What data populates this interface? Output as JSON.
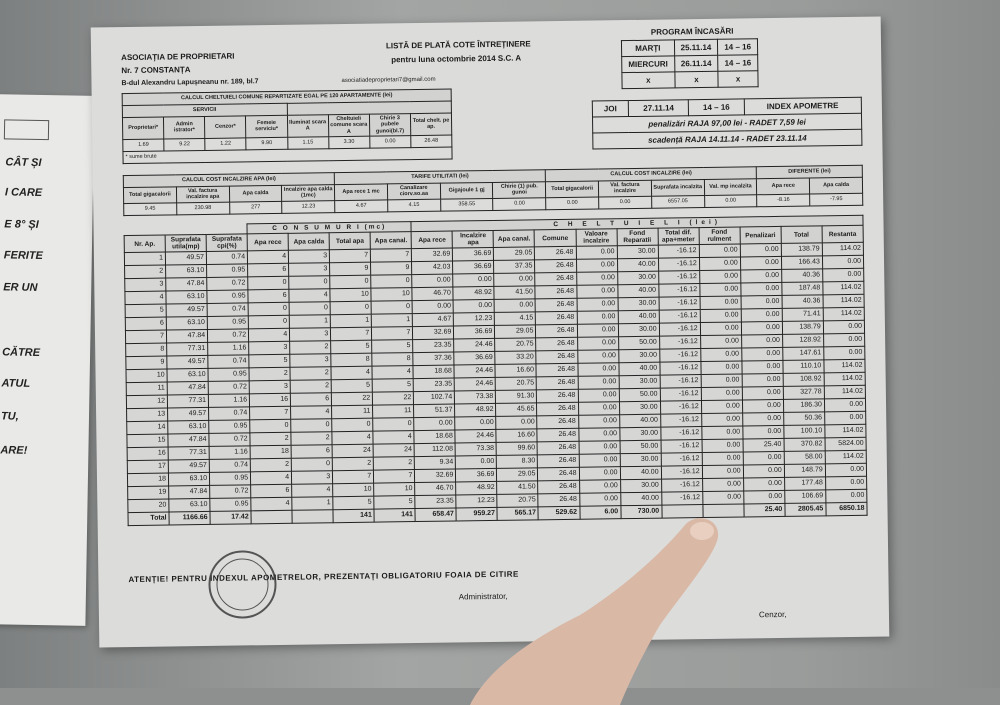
{
  "left_paper": {
    "lines": [
      "CÂT ȘI",
      "I CARE",
      "E 8° ȘI",
      "FERITE",
      "ER UN",
      "CĂTRE",
      "ATUL",
      "TU,",
      "ARE!"
    ]
  },
  "header": {
    "association": "ASOCIAȚIA DE PROPRIETARI",
    "number": "Nr. 7 CONSTANȚA",
    "address": "B-dul Alexandru Lapușneanu nr. 189, bl.7",
    "email": "asociatiadeproprietari7@gmail.com",
    "title": "LISTĂ DE PLATĂ COTE ÎNTREȚINERE",
    "subtitle": "pentru luna   octombrie 2014   S.C. A"
  },
  "program": {
    "title": "PROGRAM ÎNCASĂRI",
    "rows": [
      [
        "MARȚI",
        "25.11.14",
        "14 – 16"
      ],
      [
        "MIERCURI",
        "26.11.14",
        "14 – 16"
      ],
      [
        "x",
        "x",
        "x"
      ]
    ]
  },
  "program2": {
    "row": [
      "JOI",
      "27.11.14",
      "14 – 16"
    ],
    "index_label": "INDEX APOMETRE",
    "penalties": "penalizări RAJA 97,00 lei - RADET 7,59 lei",
    "due": "scadență RAJA 14.11.14 - RADET 23.11.14"
  },
  "common": {
    "title": "CALCUL CHELTUIELI COMUNE REPARTIZATE EGAL PE 120 APARTAMENTE (lei)",
    "group": "SERVICII",
    "headers": [
      "Proprietari*",
      "Admin istrator*",
      "Cenzor*",
      "Femeie serviciu*",
      "Iluminat scara A",
      "Cheltuieli comune scara A",
      "Chirie 3 pubele gunoi(bl.7)",
      "Total chelt. pe ap."
    ],
    "values": [
      "1.69",
      "9.22",
      "1.22",
      "9.90",
      "1.15",
      "3.30",
      "0.00",
      "26.48"
    ],
    "note": "* sume brute"
  },
  "water_heat": {
    "title": "CALCUL COST INCALZIRE APA (lei)",
    "headers": [
      "Total gigacalorii",
      "Val. factura incalzire apa",
      "Apa calda",
      "Incalzire apa calda (1mc)"
    ],
    "values": [
      "9.45",
      "230.98",
      "277",
      "12.23"
    ]
  },
  "tariffs": {
    "title": "TARIFE UTILITATI (lei)",
    "headers": [
      "Apa rece 1 mc",
      "Canalizare ciorv.so.aa",
      "Gigajoule 1 gj",
      "Chirie (1) pub. gunoi"
    ],
    "values": [
      "4.67",
      "4.15",
      "358.55",
      "0.00"
    ]
  },
  "heating": {
    "title": "CALCUL COST INCALZIRE (lei)",
    "headers": [
      "Total gigacalorii",
      "Val. factura incalzire",
      "Suprafata incalzita",
      "Val. mp incalzita"
    ],
    "values": [
      "0.00",
      "0.00",
      "6557.05",
      "0.00"
    ]
  },
  "diff": {
    "title": "DIFERENTE (lei)",
    "headers": [
      "Apa rece",
      "Apa calda"
    ],
    "values": [
      "-8.16",
      "-7.95"
    ]
  },
  "main_table": {
    "consum_title": "C O N S U M U R I (mc)",
    "chelt_title": "C H E L T U I E L I (lei)",
    "headers": [
      "Nr. Ap.",
      "Suprafata utila(mp)",
      "Suprafata cpi(%)",
      "Apa rece",
      "Apa calda",
      "Total apa",
      "Apa canal.",
      "Apa rece",
      "Incalzire apa",
      "Apa canal.",
      "Comune",
      "Valoare incalzire",
      "Fond Reparatii",
      "Total dif. apa+meter",
      "Fond rulment",
      "Penalizari",
      "Total",
      "Restanta"
    ],
    "rows": [
      [
        "1",
        "49.57",
        "0.74",
        "4",
        "3",
        "7",
        "7",
        "32.69",
        "36.69",
        "29.05",
        "26.48",
        "0.00",
        "30.00",
        "-16.12",
        "0.00",
        "0.00",
        "138.79",
        "114.02"
      ],
      [
        "2",
        "63.10",
        "0.95",
        "6",
        "3",
        "9",
        "9",
        "42.03",
        "36.69",
        "37.35",
        "26.48",
        "0.00",
        "40.00",
        "-16.12",
        "0.00",
        "0.00",
        "166.43",
        "0.00"
      ],
      [
        "3",
        "47.84",
        "0.72",
        "0",
        "0",
        "0",
        "0",
        "0.00",
        "0.00",
        "0.00",
        "26.48",
        "0.00",
        "30.00",
        "-16.12",
        "0.00",
        "0.00",
        "40.36",
        "0.00"
      ],
      [
        "4",
        "63.10",
        "0.95",
        "6",
        "4",
        "10",
        "10",
        "46.70",
        "48.92",
        "41.50",
        "26.48",
        "0.00",
        "40.00",
        "-16.12",
        "0.00",
        "0.00",
        "187.48",
        "114.02"
      ],
      [
        "5",
        "49.57",
        "0.74",
        "0",
        "0",
        "0",
        "0",
        "0.00",
        "0.00",
        "0.00",
        "26.48",
        "0.00",
        "30.00",
        "-16.12",
        "0.00",
        "0.00",
        "40.36",
        "114.02"
      ],
      [
        "6",
        "63.10",
        "0.95",
        "0",
        "1",
        "1",
        "1",
        "4.67",
        "12.23",
        "4.15",
        "26.48",
        "0.00",
        "40.00",
        "-16.12",
        "0.00",
        "0.00",
        "71.41",
        "114.02"
      ],
      [
        "7",
        "47.84",
        "0.72",
        "4",
        "3",
        "7",
        "7",
        "32.69",
        "36.69",
        "29.05",
        "26.48",
        "0.00",
        "30.00",
        "-16.12",
        "0.00",
        "0.00",
        "138.79",
        "0.00"
      ],
      [
        "8",
        "77.31",
        "1.16",
        "3",
        "2",
        "5",
        "5",
        "23.35",
        "24.46",
        "20.75",
        "26.48",
        "0.00",
        "50.00",
        "-16.12",
        "0.00",
        "0.00",
        "128.92",
        "0.00"
      ],
      [
        "9",
        "49.57",
        "0.74",
        "5",
        "3",
        "8",
        "8",
        "37.36",
        "36.69",
        "33.20",
        "26.48",
        "0.00",
        "30.00",
        "-16.12",
        "0.00",
        "0.00",
        "147.61",
        "0.00"
      ],
      [
        "10",
        "63.10",
        "0.95",
        "2",
        "2",
        "4",
        "4",
        "18.68",
        "24.46",
        "16.60",
        "26.48",
        "0.00",
        "40.00",
        "-16.12",
        "0.00",
        "0.00",
        "110.10",
        "114.02"
      ],
      [
        "11",
        "47.84",
        "0.72",
        "3",
        "2",
        "5",
        "5",
        "23.35",
        "24.46",
        "20.75",
        "26.48",
        "0.00",
        "30.00",
        "-16.12",
        "0.00",
        "0.00",
        "108.92",
        "114.02"
      ],
      [
        "12",
        "77.31",
        "1.16",
        "16",
        "6",
        "22",
        "22",
        "102.74",
        "73.38",
        "91.30",
        "26.48",
        "0.00",
        "50.00",
        "-16.12",
        "0.00",
        "0.00",
        "327.78",
        "114.02"
      ],
      [
        "13",
        "49.57",
        "0.74",
        "7",
        "4",
        "11",
        "11",
        "51.37",
        "48.92",
        "45.65",
        "26.48",
        "0.00",
        "30.00",
        "-16.12",
        "0.00",
        "0.00",
        "186.30",
        "0.00"
      ],
      [
        "14",
        "63.10",
        "0.95",
        "0",
        "0",
        "0",
        "0",
        "0.00",
        "0.00",
        "0.00",
        "26.48",
        "0.00",
        "40.00",
        "-16.12",
        "0.00",
        "0.00",
        "50.36",
        "0.00"
      ],
      [
        "15",
        "47.84",
        "0.72",
        "2",
        "2",
        "4",
        "4",
        "18.68",
        "24.46",
        "16.60",
        "26.48",
        "0.00",
        "30.00",
        "-16.12",
        "0.00",
        "0.00",
        "100.10",
        "114.02"
      ],
      [
        "16",
        "77.31",
        "1.16",
        "18",
        "6",
        "24",
        "24",
        "112.08",
        "73.38",
        "99.60",
        "26.48",
        "0.00",
        "50.00",
        "-16.12",
        "0.00",
        "25.40",
        "370.82",
        "5824.00"
      ],
      [
        "17",
        "49.57",
        "0.74",
        "2",
        "0",
        "2",
        "2",
        "9.34",
        "0.00",
        "8.30",
        "26.48",
        "0.00",
        "30.00",
        "-16.12",
        "0.00",
        "0.00",
        "58.00",
        "114.02"
      ],
      [
        "18",
        "63.10",
        "0.95",
        "4",
        "3",
        "7",
        "7",
        "32.69",
        "36.69",
        "29.05",
        "26.48",
        "0.00",
        "40.00",
        "-16.12",
        "0.00",
        "0.00",
        "148.79",
        "0.00"
      ],
      [
        "19",
        "47.84",
        "0.72",
        "6",
        "4",
        "10",
        "10",
        "46.70",
        "48.92",
        "41.50",
        "26.48",
        "0.00",
        "30.00",
        "-16.12",
        "0.00",
        "0.00",
        "177.48",
        "0.00"
      ],
      [
        "20",
        "63.10",
        "0.95",
        "4",
        "1",
        "5",
        "5",
        "23.35",
        "12.23",
        "20.75",
        "26.48",
        "0.00",
        "40.00",
        "-16.12",
        "0.00",
        "0.00",
        "106.69",
        "0.00"
      ]
    ],
    "total": [
      "Total",
      "1166.66",
      "17.42",
      "",
      "",
      "141",
      "141",
      "658.47",
      "959.27",
      "565.17",
      "529.62",
      "6.00",
      "730.00",
      "",
      "",
      "25.40",
      "2805.45",
      "6850.18"
    ]
  },
  "footer": {
    "attention": "ATENȚIE! PENTRU INDEXUL APOMETRELOR, PREZENTAȚI OBLIGATORIU FOAIA DE CITIRE",
    "admin": "Administrator,",
    "censor": "Cenzor,"
  }
}
